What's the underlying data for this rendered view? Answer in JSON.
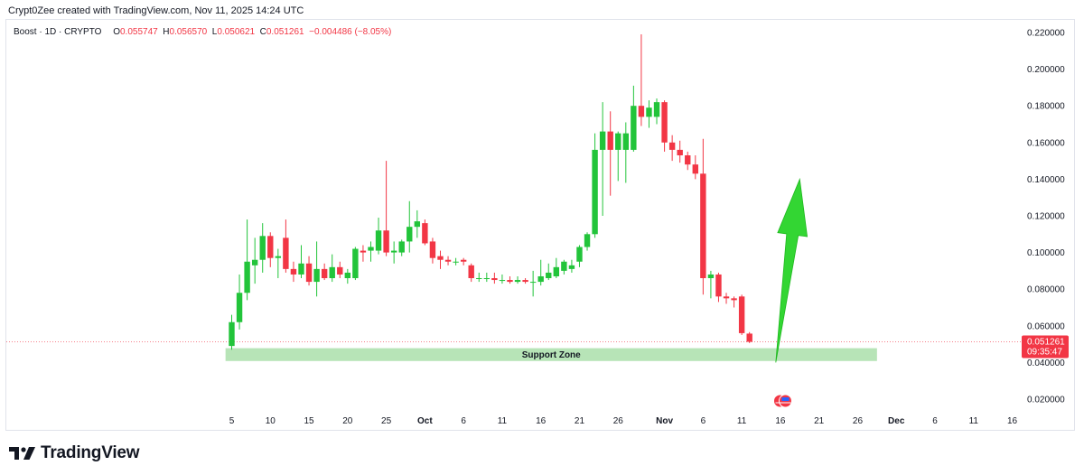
{
  "header": {
    "credit": "Crypt0Zee created with TradingView.com, Nov 11, 2025 14:24 UTC"
  },
  "legend": {
    "symbol": "Boost · 1D · CRYPTO",
    "open_label": "O",
    "open": "0.055747",
    "high_label": "H",
    "high": "0.056570",
    "low_label": "L",
    "low": "0.050621",
    "close_label": "C",
    "close": "0.051261",
    "change": "−0.004486 (−8.05%)"
  },
  "footer": {
    "brand": "TradingView"
  },
  "colors": {
    "up": "#22c43a",
    "down": "#f23645",
    "zone": "#b7e4b7",
    "arrow": "#33d633",
    "price_badge": "#f23645"
  },
  "chart_data": {
    "type": "candlestick",
    "price_axis": {
      "ticks": [
        "0.220000",
        "0.200000",
        "0.180000",
        "0.160000",
        "0.140000",
        "0.120000",
        "0.100000",
        "0.080000",
        "0.060000",
        "0.040000",
        "0.020000"
      ],
      "range": [
        0.012,
        0.232
      ]
    },
    "time_axis": {
      "labels": [
        {
          "text": "5",
          "day": 5,
          "bold": false
        },
        {
          "text": "10",
          "day": 10,
          "bold": false
        },
        {
          "text": "15",
          "day": 15,
          "bold": false
        },
        {
          "text": "20",
          "day": 20,
          "bold": false
        },
        {
          "text": "25",
          "day": 25,
          "bold": false
        },
        {
          "text": "Oct",
          "day": 30,
          "bold": true
        },
        {
          "text": "6",
          "day": 35,
          "bold": false
        },
        {
          "text": "11",
          "day": 40,
          "bold": false
        },
        {
          "text": "16",
          "day": 45,
          "bold": false
        },
        {
          "text": "21",
          "day": 50,
          "bold": false
        },
        {
          "text": "26",
          "day": 55,
          "bold": false
        },
        {
          "text": "Nov",
          "day": 61,
          "bold": true
        },
        {
          "text": "6",
          "day": 66,
          "bold": false
        },
        {
          "text": "11",
          "day": 71,
          "bold": false
        },
        {
          "text": "16",
          "day": 76,
          "bold": false
        },
        {
          "text": "21",
          "day": 81,
          "bold": false
        },
        {
          "text": "26",
          "day": 86,
          "bold": false
        },
        {
          "text": "Dec",
          "day": 91,
          "bold": true
        },
        {
          "text": "6",
          "day": 96,
          "bold": false
        },
        {
          "text": "11",
          "day": 101,
          "bold": false
        },
        {
          "text": "16",
          "day": 106,
          "bold": false
        }
      ]
    },
    "candles": [
      {
        "d": 5,
        "o": 0.049,
        "h": 0.066,
        "l": 0.047,
        "c": 0.062
      },
      {
        "d": 6,
        "o": 0.062,
        "h": 0.088,
        "l": 0.058,
        "c": 0.078
      },
      {
        "d": 7,
        "o": 0.078,
        "h": 0.118,
        "l": 0.074,
        "c": 0.095
      },
      {
        "d": 8,
        "o": 0.093,
        "h": 0.108,
        "l": 0.083,
        "c": 0.096
      },
      {
        "d": 9,
        "o": 0.096,
        "h": 0.116,
        "l": 0.089,
        "c": 0.109
      },
      {
        "d": 10,
        "o": 0.109,
        "h": 0.111,
        "l": 0.092,
        "c": 0.097
      },
      {
        "d": 11,
        "o": 0.097,
        "h": 0.102,
        "l": 0.086,
        "c": 0.098
      },
      {
        "d": 12,
        "o": 0.108,
        "h": 0.118,
        "l": 0.089,
        "c": 0.091
      },
      {
        "d": 13,
        "o": 0.091,
        "h": 0.095,
        "l": 0.084,
        "c": 0.088
      },
      {
        "d": 14,
        "o": 0.088,
        "h": 0.104,
        "l": 0.086,
        "c": 0.094
      },
      {
        "d": 15,
        "o": 0.094,
        "h": 0.098,
        "l": 0.082,
        "c": 0.084
      },
      {
        "d": 16,
        "o": 0.084,
        "h": 0.106,
        "l": 0.076,
        "c": 0.091
      },
      {
        "d": 17,
        "o": 0.091,
        "h": 0.094,
        "l": 0.085,
        "c": 0.086
      },
      {
        "d": 18,
        "o": 0.086,
        "h": 0.099,
        "l": 0.084,
        "c": 0.092
      },
      {
        "d": 19,
        "o": 0.092,
        "h": 0.095,
        "l": 0.086,
        "c": 0.088
      },
      {
        "d": 20,
        "o": 0.086,
        "h": 0.091,
        "l": 0.083,
        "c": 0.089
      },
      {
        "d": 21,
        "o": 0.086,
        "h": 0.103,
        "l": 0.085,
        "c": 0.102
      },
      {
        "d": 22,
        "o": 0.101,
        "h": 0.104,
        "l": 0.095,
        "c": 0.1
      },
      {
        "d": 23,
        "o": 0.101,
        "h": 0.106,
        "l": 0.095,
        "c": 0.103
      },
      {
        "d": 24,
        "o": 0.101,
        "h": 0.119,
        "l": 0.099,
        "c": 0.112
      },
      {
        "d": 25,
        "o": 0.112,
        "h": 0.15,
        "l": 0.098,
        "c": 0.1
      },
      {
        "d": 26,
        "o": 0.1,
        "h": 0.106,
        "l": 0.094,
        "c": 0.101
      },
      {
        "d": 27,
        "o": 0.1,
        "h": 0.107,
        "l": 0.098,
        "c": 0.106
      },
      {
        "d": 28,
        "o": 0.106,
        "h": 0.128,
        "l": 0.1,
        "c": 0.114
      },
      {
        "d": 29,
        "o": 0.114,
        "h": 0.123,
        "l": 0.108,
        "c": 0.117
      },
      {
        "d": 30,
        "o": 0.116,
        "h": 0.118,
        "l": 0.104,
        "c": 0.105
      },
      {
        "d": 31,
        "o": 0.106,
        "h": 0.108,
        "l": 0.094,
        "c": 0.097
      },
      {
        "d": 32,
        "o": 0.098,
        "h": 0.101,
        "l": 0.091,
        "c": 0.096
      },
      {
        "d": 33,
        "o": 0.096,
        "h": 0.098,
        "l": 0.093,
        "c": 0.095
      },
      {
        "d": 34,
        "o": 0.095,
        "h": 0.097,
        "l": 0.093,
        "c": 0.095
      },
      {
        "d": 35,
        "o": 0.096,
        "h": 0.097,
        "l": 0.093,
        "c": 0.095
      },
      {
        "d": 36,
        "o": 0.093,
        "h": 0.094,
        "l": 0.084,
        "c": 0.086
      },
      {
        "d": 37,
        "o": 0.086,
        "h": 0.089,
        "l": 0.084,
        "c": 0.086
      },
      {
        "d": 38,
        "o": 0.086,
        "h": 0.089,
        "l": 0.084,
        "c": 0.086
      },
      {
        "d": 39,
        "o": 0.086,
        "h": 0.089,
        "l": 0.083,
        "c": 0.085
      },
      {
        "d": 40,
        "o": 0.085,
        "h": 0.088,
        "l": 0.083,
        "c": 0.085
      },
      {
        "d": 41,
        "o": 0.085,
        "h": 0.087,
        "l": 0.083,
        "c": 0.084
      },
      {
        "d": 42,
        "o": 0.084,
        "h": 0.087,
        "l": 0.083,
        "c": 0.085
      },
      {
        "d": 43,
        "o": 0.085,
        "h": 0.086,
        "l": 0.083,
        "c": 0.084
      },
      {
        "d": 44,
        "o": 0.084,
        "h": 0.09,
        "l": 0.076,
        "c": 0.084
      },
      {
        "d": 45,
        "o": 0.084,
        "h": 0.096,
        "l": 0.082,
        "c": 0.087
      },
      {
        "d": 46,
        "o": 0.086,
        "h": 0.094,
        "l": 0.085,
        "c": 0.089
      },
      {
        "d": 47,
        "o": 0.087,
        "h": 0.097,
        "l": 0.086,
        "c": 0.092
      },
      {
        "d": 48,
        "o": 0.09,
        "h": 0.096,
        "l": 0.088,
        "c": 0.095
      },
      {
        "d": 49,
        "o": 0.091,
        "h": 0.096,
        "l": 0.089,
        "c": 0.093
      },
      {
        "d": 50,
        "o": 0.095,
        "h": 0.104,
        "l": 0.092,
        "c": 0.103
      },
      {
        "d": 51,
        "o": 0.103,
        "h": 0.111,
        "l": 0.101,
        "c": 0.11
      },
      {
        "d": 52,
        "o": 0.11,
        "h": 0.165,
        "l": 0.108,
        "c": 0.156
      },
      {
        "d": 53,
        "o": 0.156,
        "h": 0.182,
        "l": 0.12,
        "c": 0.166
      },
      {
        "d": 54,
        "o": 0.166,
        "h": 0.177,
        "l": 0.131,
        "c": 0.156
      },
      {
        "d": 55,
        "o": 0.156,
        "h": 0.166,
        "l": 0.139,
        "c": 0.165
      },
      {
        "d": 56,
        "o": 0.156,
        "h": 0.171,
        "l": 0.138,
        "c": 0.165
      },
      {
        "d": 57,
        "o": 0.156,
        "h": 0.191,
        "l": 0.155,
        "c": 0.18
      },
      {
        "d": 58,
        "o": 0.18,
        "h": 0.219,
        "l": 0.169,
        "c": 0.174
      },
      {
        "d": 59,
        "o": 0.174,
        "h": 0.183,
        "l": 0.168,
        "c": 0.179
      },
      {
        "d": 60,
        "o": 0.174,
        "h": 0.184,
        "l": 0.17,
        "c": 0.182
      },
      {
        "d": 61,
        "o": 0.182,
        "h": 0.183,
        "l": 0.155,
        "c": 0.16
      },
      {
        "d": 62,
        "o": 0.16,
        "h": 0.164,
        "l": 0.15,
        "c": 0.156
      },
      {
        "d": 63,
        "o": 0.156,
        "h": 0.161,
        "l": 0.149,
        "c": 0.153
      },
      {
        "d": 64,
        "o": 0.153,
        "h": 0.155,
        "l": 0.145,
        "c": 0.148
      },
      {
        "d": 65,
        "o": 0.148,
        "h": 0.153,
        "l": 0.14,
        "c": 0.143
      },
      {
        "d": 66,
        "o": 0.143,
        "h": 0.162,
        "l": 0.077,
        "c": 0.086
      },
      {
        "d": 67,
        "o": 0.086,
        "h": 0.09,
        "l": 0.075,
        "c": 0.088
      },
      {
        "d": 68,
        "o": 0.088,
        "h": 0.089,
        "l": 0.073,
        "c": 0.076
      },
      {
        "d": 69,
        "o": 0.076,
        "h": 0.078,
        "l": 0.072,
        "c": 0.075
      },
      {
        "d": 70,
        "o": 0.075,
        "h": 0.076,
        "l": 0.07,
        "c": 0.074
      },
      {
        "d": 71,
        "o": 0.076,
        "h": 0.077,
        "l": 0.055,
        "c": 0.056
      },
      {
        "d": 72,
        "o": 0.055747,
        "h": 0.05657,
        "l": 0.050621,
        "c": 0.051261
      }
    ],
    "support_zone": {
      "label": "Support Zone",
      "from_day": 4.2,
      "to_day": 88.5,
      "low": 0.0408,
      "high": 0.0478
    },
    "last_price": {
      "value": "0.051261",
      "countdown": "09:35:47"
    },
    "arrow": {
      "from_day": 75.4,
      "from_price": 0.04,
      "to_day": 78.5,
      "to_price": 0.14,
      "color": "#33d633"
    },
    "events_icon": {
      "day": 76.3,
      "price": 0.019
    }
  }
}
